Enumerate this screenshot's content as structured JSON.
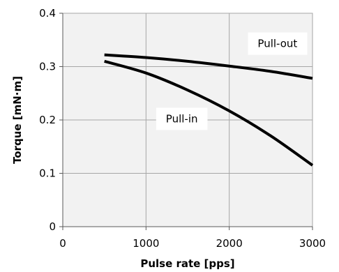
{
  "chart_data": {
    "type": "line",
    "xlabel": "Pulse rate [pps]",
    "ylabel": "Torque [mN·m]",
    "xlim": [
      0,
      3000
    ],
    "ylim": [
      0,
      0.4
    ],
    "x_ticks": [
      0,
      1000,
      2000,
      3000
    ],
    "y_ticks": [
      0,
      0.1,
      0.2,
      0.3,
      0.4
    ],
    "x_tick_labels": [
      "0",
      "1000",
      "2000",
      "3000"
    ],
    "y_tick_labels": [
      "0",
      "0.1",
      "0.2",
      "0.3",
      "0.4"
    ],
    "grid": true,
    "background_color": "#f2f2f2",
    "grid_color": "#a6a6a6",
    "line_color": "#000000",
    "series": [
      {
        "name": "Pull-out",
        "x": [
          500,
          1000,
          1500,
          2000,
          2500,
          3000
        ],
        "y": [
          0.322,
          0.317,
          0.31,
          0.301,
          0.291,
          0.278
        ]
      },
      {
        "name": "Pull-in",
        "x": [
          500,
          1000,
          1500,
          2000,
          2500,
          3000
        ],
        "y": [
          0.31,
          0.288,
          0.256,
          0.217,
          0.17,
          0.115
        ]
      }
    ],
    "annotations": [
      {
        "text": "Pull-out",
        "x": 2580,
        "y": 0.343
      },
      {
        "text": "Pull-in",
        "x": 1430,
        "y": 0.202
      }
    ]
  }
}
